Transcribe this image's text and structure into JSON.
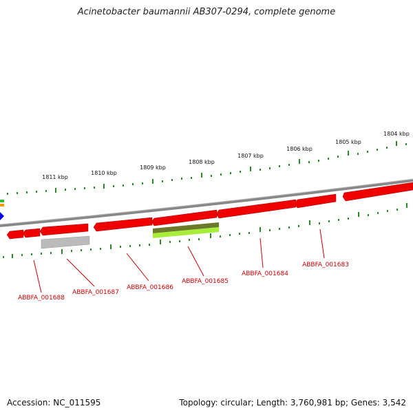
{
  "title": "Acinetobacter baumannii AB307-0294, complete genome",
  "footer": {
    "accession": "Accession: NC_011595",
    "topology": "Topology: circular; Length: 3,760,981 bp; Genes: 3,542"
  },
  "scale_labels": [
    "1811 kbp",
    "1810 kbp",
    "1809 kbp",
    "1808 kbp",
    "1807 kbp",
    "1806 kbp",
    "1805 kbp",
    "1804 kbp"
  ],
  "gene_labels": [
    "ABBFA_001688",
    "ABBFA_001687",
    "ABBFA_001686",
    "ABBFA_001685",
    "ABBFA_001684",
    "ABBFA_001683"
  ],
  "colors": {
    "gene": "#ee0000",
    "gene_edge": "#aa0000",
    "backbone": "#888888",
    "tick": "#2a8a2a",
    "label": "#cc0000",
    "grey_feature": "#bbbbbb",
    "olive_feature": "#6b7a2a",
    "lime_feature": "#a6ee3a"
  }
}
